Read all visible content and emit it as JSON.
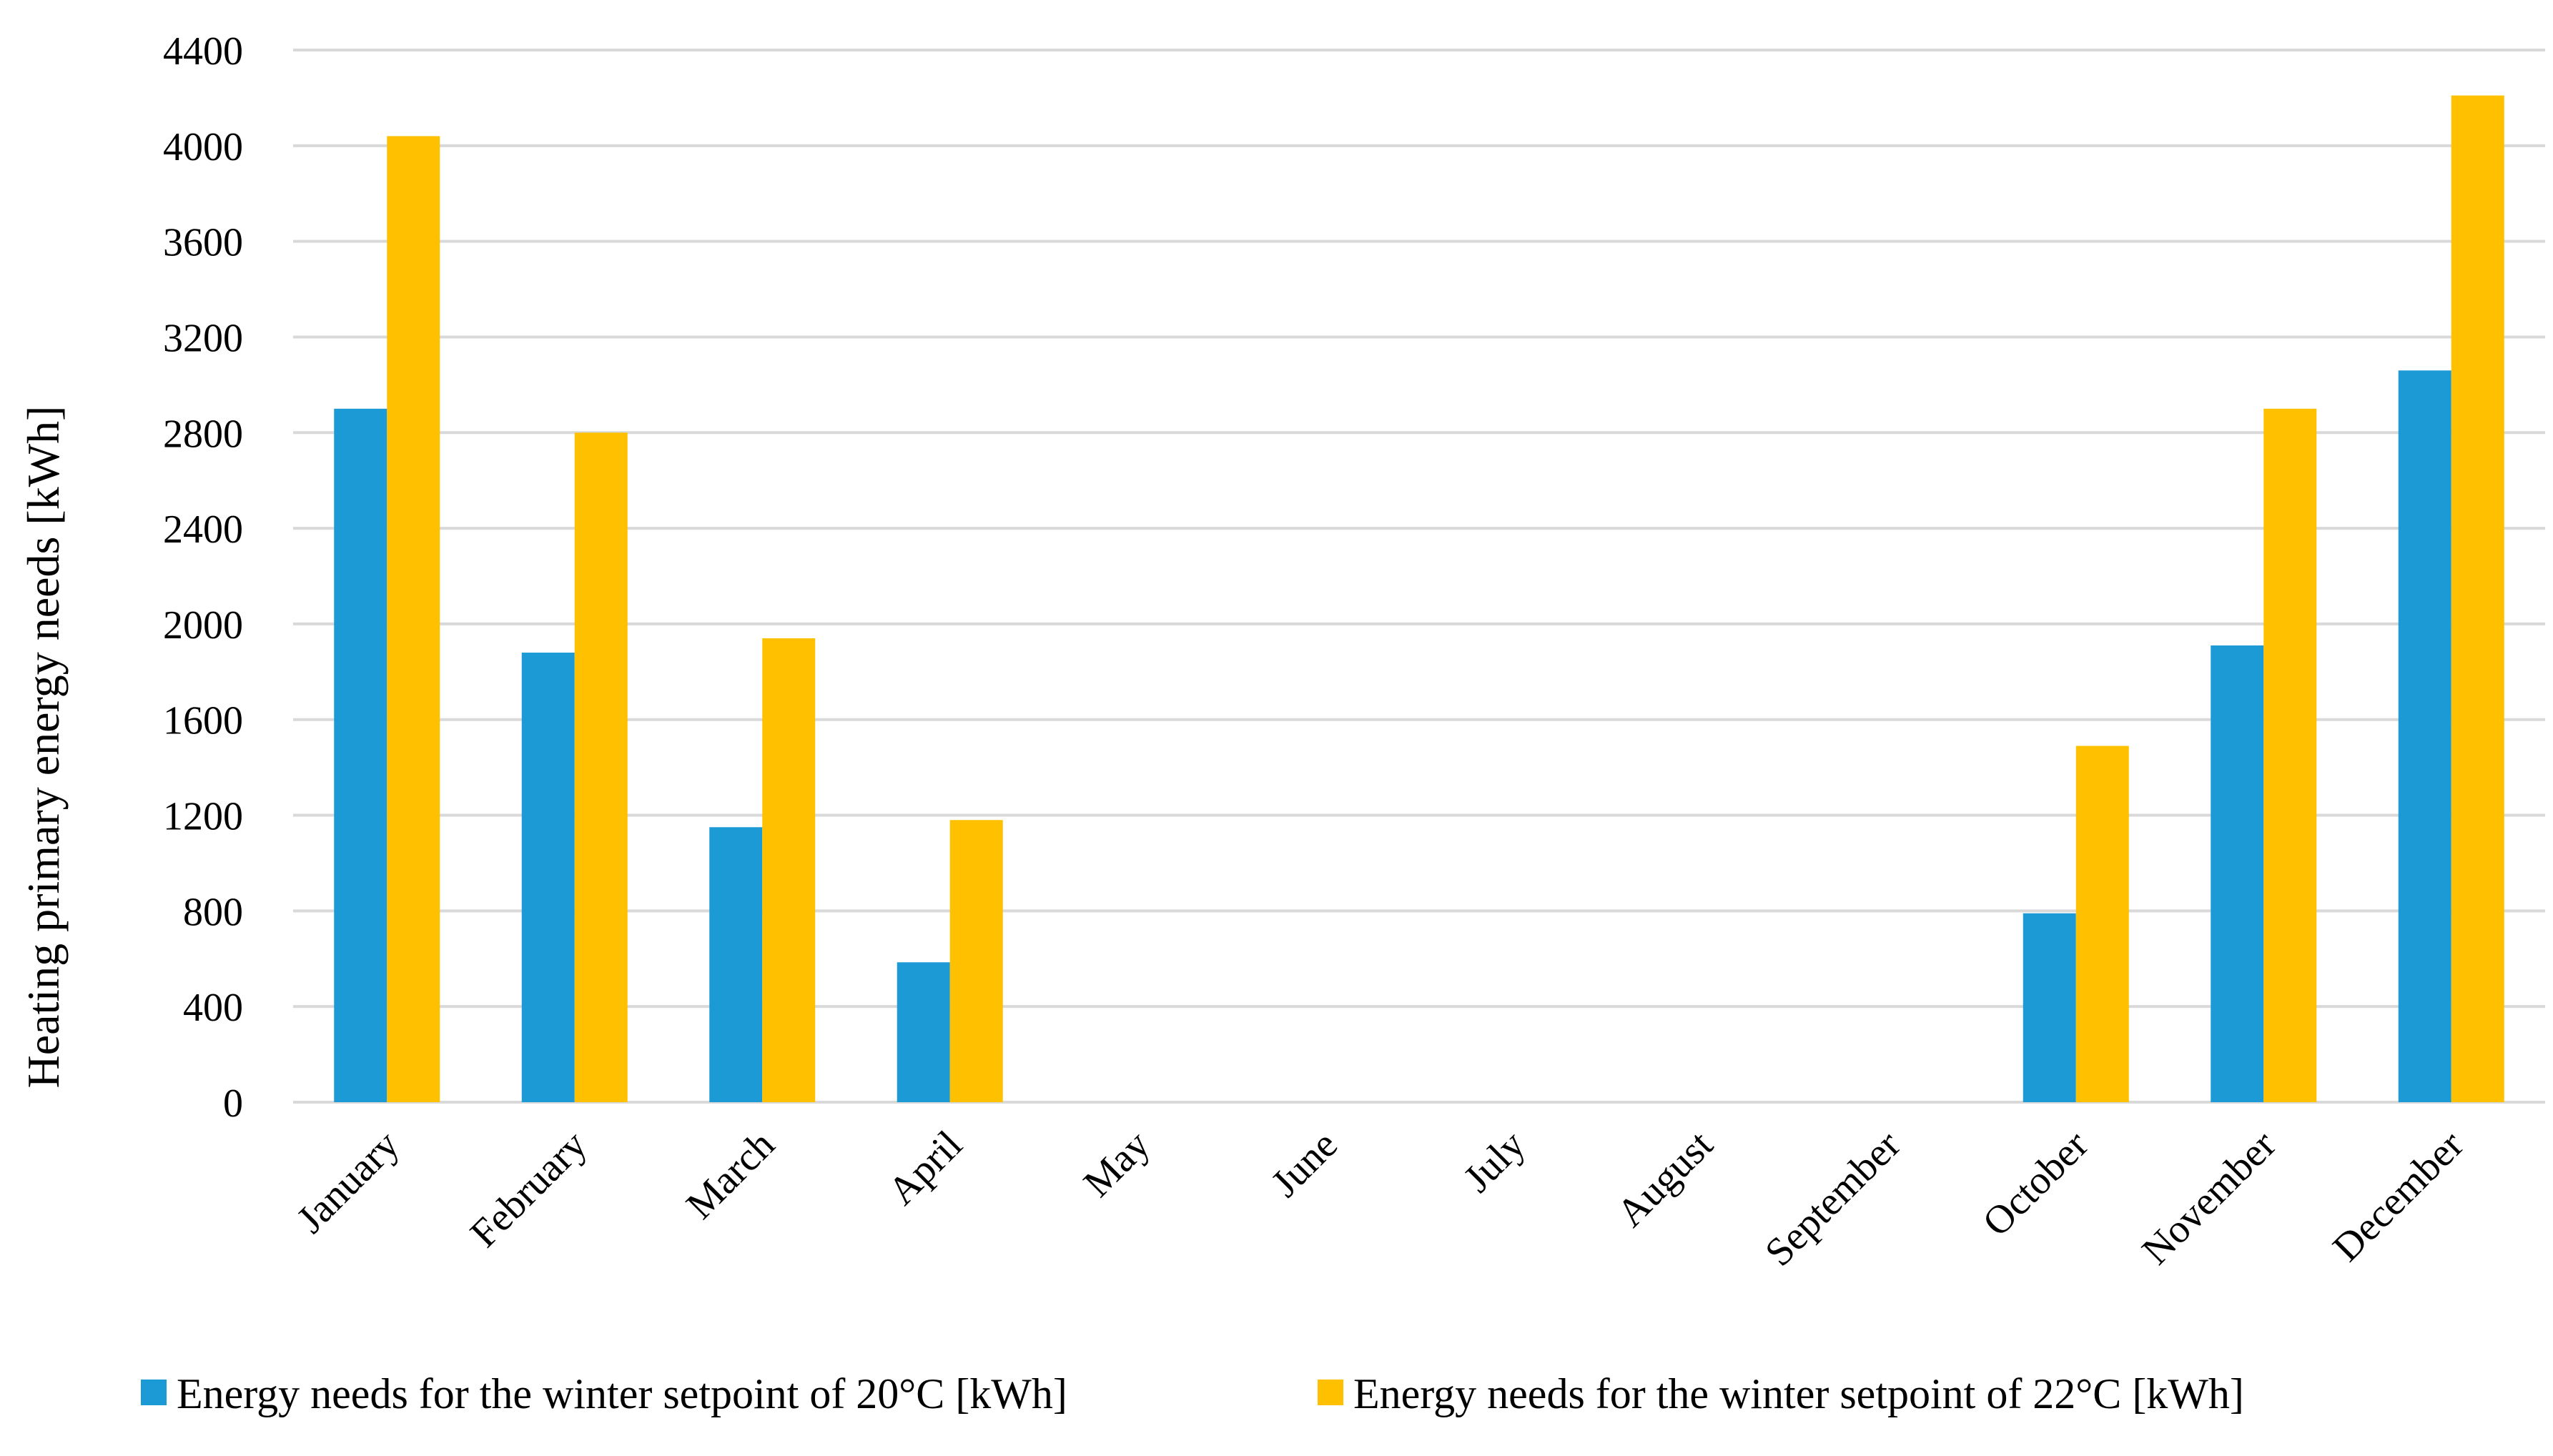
{
  "chart_data": {
    "type": "bar",
    "title": "",
    "xlabel": "",
    "ylabel": "Heating primary energy needs [kWh]",
    "ylim": [
      0,
      4400
    ],
    "yticks": [
      "0",
      "400",
      "800",
      "1200",
      "1600",
      "2000",
      "2400",
      "2800",
      "3200",
      "3600",
      "4000",
      "4400"
    ],
    "grid": true,
    "legend_position": "bottom",
    "categories": [
      "January",
      "February",
      "March",
      "April",
      "May",
      "June",
      "July",
      "August",
      "September",
      "October",
      "November",
      "December"
    ],
    "series": [
      {
        "name": "Energy needs for the winter setpoint of 20°C [kWh]",
        "color": "#1b9ad6",
        "values": [
          2900,
          1880,
          1150,
          585,
          0,
          0,
          0,
          0,
          0,
          790,
          1910,
          3060
        ]
      },
      {
        "name": "Energy needs for the winter setpoint of 22°C [kWh]",
        "color": "#ffc000",
        "values": [
          4040,
          2800,
          1940,
          1180,
          0,
          0,
          0,
          0,
          0,
          1490,
          2900,
          4210
        ]
      }
    ]
  }
}
